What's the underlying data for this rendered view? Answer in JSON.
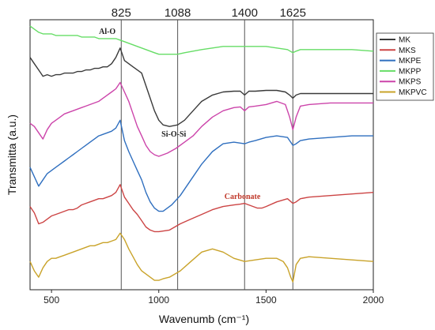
{
  "chart_data": {
    "type": "line",
    "xlabel": "Wavenumb (cm⁻¹)",
    "ylabel": "Transmitta (a.u.)",
    "xlim": [
      400,
      2000
    ],
    "xticks": [
      500,
      1000,
      1500,
      2000
    ],
    "reference_lines": [
      {
        "x": 825,
        "label": "825"
      },
      {
        "x": 1088,
        "label": "1088"
      },
      {
        "x": 1400,
        "label": "1400"
      },
      {
        "x": 1625,
        "label": "1625"
      }
    ],
    "annotations": [
      {
        "text": "Al-O",
        "x": 760,
        "series": "MKPP",
        "color": "#222222"
      },
      {
        "text": "Si-O-Si",
        "x": 1070,
        "series": "MK",
        "color": "#222222"
      },
      {
        "text": "Carbonate",
        "x": 1390,
        "series": "MKS",
        "color": "#c0392b"
      }
    ],
    "legend_position": "top-right",
    "series": [
      {
        "name": "MK",
        "color": "#3a3a3a",
        "x": [
          400,
          420,
          440,
          460,
          480,
          500,
          520,
          540,
          560,
          580,
          600,
          620,
          640,
          660,
          680,
          700,
          720,
          740,
          760,
          780,
          800,
          820,
          840,
          860,
          880,
          900,
          920,
          940,
          960,
          980,
          1000,
          1020,
          1050,
          1088,
          1120,
          1160,
          1200,
          1250,
          1300,
          1350,
          1380,
          1400,
          1420,
          1450,
          1500,
          1550,
          1590,
          1610,
          1625,
          1640,
          1660,
          1700,
          1800,
          1900,
          2000
        ],
        "y": [
          48,
          44,
          40,
          36,
          37,
          36,
          37,
          37,
          38,
          38,
          38,
          39,
          39,
          40,
          40,
          41,
          41,
          42,
          42,
          44,
          48,
          54,
          46,
          44,
          42,
          40,
          38,
          30,
          22,
          14,
          8,
          5,
          4,
          5,
          8,
          14,
          20,
          24,
          26,
          26.5,
          26.5,
          24,
          26.5,
          26.5,
          27,
          27,
          26,
          24,
          22,
          24,
          25,
          25,
          25,
          25,
          25
        ]
      },
      {
        "name": "MKS",
        "color": "#cc4444",
        "x": [
          400,
          420,
          440,
          460,
          480,
          500,
          520,
          540,
          560,
          580,
          600,
          620,
          640,
          660,
          680,
          700,
          720,
          740,
          760,
          780,
          800,
          820,
          840,
          860,
          880,
          900,
          920,
          940,
          960,
          980,
          1000,
          1050,
          1100,
          1150,
          1200,
          1250,
          1300,
          1350,
          1380,
          1400,
          1420,
          1440,
          1460,
          1480,
          1500,
          1550,
          1600,
          1625,
          1640,
          1660,
          1700,
          1800,
          1900,
          2000
        ],
        "y": [
          -47,
          -51,
          -58,
          -57,
          -55,
          -53,
          -52,
          -51,
          -50,
          -49,
          -49,
          -48,
          -46,
          -45,
          -44,
          -43,
          -42,
          -42,
          -41,
          -40,
          -38,
          -33,
          -41,
          -45,
          -49,
          -52,
          -56,
          -60,
          -62,
          -63,
          -63,
          -62,
          -58,
          -55,
          -52,
          -49,
          -47,
          -46,
          -45.5,
          -45,
          -46,
          -47,
          -48,
          -48,
          -47,
          -44,
          -42,
          -45,
          -44,
          -42,
          -41,
          -40,
          -39,
          -38
        ]
      },
      {
        "name": "MKPE",
        "color": "#2f6fbf",
        "x": [
          400,
          420,
          440,
          460,
          480,
          500,
          520,
          540,
          560,
          580,
          600,
          620,
          640,
          660,
          680,
          700,
          720,
          740,
          760,
          780,
          800,
          820,
          840,
          860,
          880,
          900,
          920,
          940,
          960,
          980,
          1000,
          1020,
          1040,
          1060,
          1080,
          1100,
          1150,
          1200,
          1250,
          1300,
          1350,
          1400,
          1420,
          1450,
          1500,
          1550,
          1600,
          1625,
          1640,
          1660,
          1700,
          1800,
          1900,
          2000
        ],
        "y": [
          -22,
          -28,
          -34,
          -30,
          -26,
          -24,
          -22,
          -20,
          -18,
          -16,
          -14,
          -12,
          -10,
          -8,
          -6,
          -4,
          -2,
          -1,
          0,
          1,
          3,
          8,
          -5,
          -12,
          -18,
          -24,
          -30,
          -38,
          -44,
          -48,
          -50,
          -50,
          -48,
          -46,
          -43,
          -40,
          -30,
          -20,
          -12,
          -7,
          -6,
          -7,
          -6,
          -5,
          -3,
          -2,
          -3,
          -8,
          -7,
          -5,
          -4,
          -3,
          -2,
          -2
        ]
      },
      {
        "name": "MKPP",
        "color": "#66dd66",
        "x": [
          400,
          420,
          440,
          460,
          480,
          500,
          520,
          540,
          560,
          580,
          600,
          620,
          640,
          660,
          680,
          700,
          720,
          740,
          760,
          780,
          800,
          820,
          840,
          860,
          880,
          900,
          920,
          940,
          960,
          980,
          1000,
          1050,
          1088,
          1120,
          1160,
          1200,
          1250,
          1300,
          1350,
          1400,
          1450,
          1500,
          1550,
          1600,
          1625,
          1640,
          1660,
          1700,
          1800,
          1900,
          2000
        ],
        "y": [
          68,
          66,
          64,
          63,
          63,
          63,
          62,
          62,
          62,
          62,
          62,
          62,
          61,
          61,
          61,
          61,
          60,
          60,
          60,
          60,
          60,
          59,
          58,
          57,
          56,
          55,
          54,
          53,
          52,
          51,
          50,
          50,
          50,
          51,
          52,
          53,
          54,
          55,
          55,
          55,
          55,
          55,
          54,
          53,
          51,
          52,
          53,
          53,
          53,
          53,
          52
        ]
      },
      {
        "name": "MKPS",
        "color": "#cc44aa",
        "x": [
          400,
          420,
          440,
          460,
          480,
          500,
          520,
          540,
          560,
          580,
          600,
          620,
          640,
          660,
          680,
          700,
          720,
          740,
          760,
          780,
          800,
          820,
          840,
          860,
          880,
          900,
          920,
          940,
          960,
          980,
          1000,
          1040,
          1080,
          1120,
          1160,
          1200,
          1250,
          1300,
          1350,
          1380,
          1400,
          1420,
          1450,
          1500,
          1550,
          1590,
          1610,
          1625,
          1640,
          1660,
          1700,
          1800,
          1900,
          2000
        ],
        "y": [
          6,
          4,
          0,
          -4,
          2,
          6,
          8,
          10,
          12,
          13,
          14,
          15,
          16,
          17,
          18,
          19,
          20,
          22,
          24,
          26,
          28,
          32,
          26,
          20,
          12,
          4,
          -2,
          -8,
          -12,
          -14,
          -15,
          -13,
          -10,
          -6,
          -2,
          4,
          10,
          14,
          16,
          16.5,
          14,
          16.5,
          17,
          18,
          20,
          18,
          10,
          2,
          10,
          17,
          18,
          19,
          19,
          19
        ]
      },
      {
        "name": "MKPVC",
        "color": "#c9a32a",
        "x": [
          400,
          420,
          440,
          460,
          480,
          500,
          520,
          540,
          560,
          580,
          600,
          620,
          640,
          660,
          680,
          700,
          720,
          740,
          760,
          780,
          800,
          820,
          840,
          860,
          880,
          900,
          920,
          940,
          960,
          980,
          1000,
          1020,
          1050,
          1100,
          1150,
          1200,
          1250,
          1300,
          1350,
          1400,
          1450,
          1500,
          1550,
          1580,
          1600,
          1615,
          1625,
          1640,
          1660,
          1700,
          1800,
          1900,
          2000
        ],
        "y": [
          -82,
          -88,
          -92,
          -86,
          -82,
          -80,
          -80,
          -79,
          -78,
          -77,
          -76,
          -75,
          -74,
          -73,
          -72,
          -72,
          -71,
          -70,
          -70,
          -69,
          -68,
          -64,
          -68,
          -74,
          -79,
          -84,
          -88,
          -90,
          -92,
          -94,
          -94,
          -93,
          -92,
          -88,
          -82,
          -76,
          -74,
          -76,
          -80,
          -82,
          -81,
          -80,
          -80,
          -82,
          -86,
          -92,
          -95,
          -84,
          -80,
          -79,
          -80,
          -81,
          -82
        ]
      }
    ]
  }
}
